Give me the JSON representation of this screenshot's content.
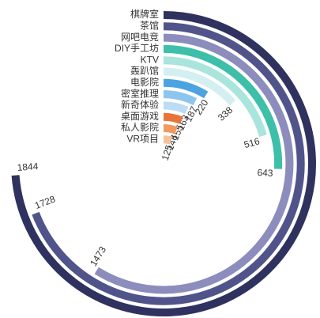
{
  "chart_data": {
    "type": "radial-bar",
    "categories": [
      "棋牌室",
      "茶馆",
      "网吧电竞",
      "DIY手工坊",
      "KTV",
      "轰趴馆",
      "电影院",
      "密室推理",
      "新奇体验",
      "桌面游戏",
      "私人影院",
      "VR项目"
    ],
    "values": [
      1844,
      1728,
      1473,
      643,
      516,
      338,
      220,
      187,
      163,
      155,
      146,
      125
    ],
    "colors": [
      "#2f315f",
      "#51548a",
      "#8c8dbd",
      "#3dbfa9",
      "#a9e5dc",
      "#d3eff1",
      "#4ba3e2",
      "#8cc5ee",
      "#bcdcf4",
      "#e8743a",
      "#f09a5e",
      "#f5c19b"
    ],
    "ylim": [
      0,
      2500
    ]
  }
}
